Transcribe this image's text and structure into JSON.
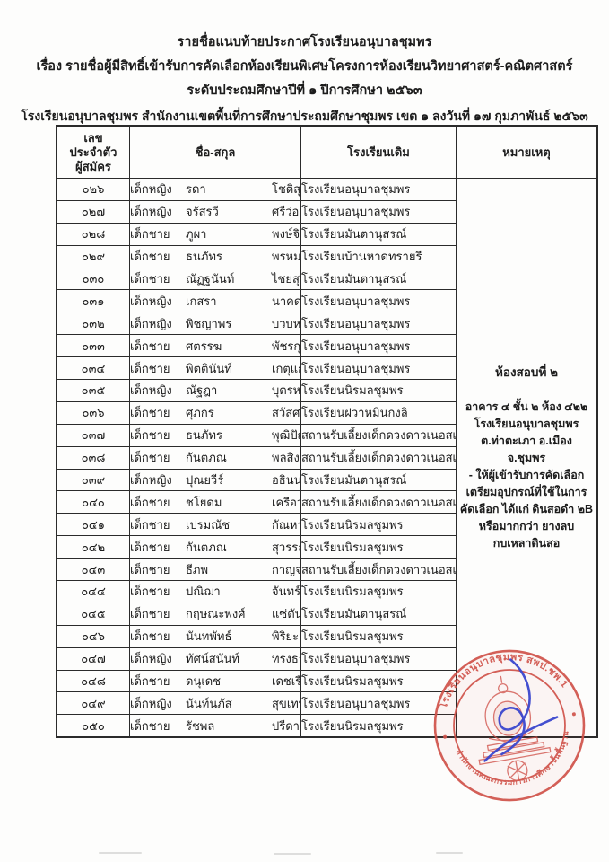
{
  "page": {
    "title_lines": [
      "รายชื่อแนบท้ายประกาศโรงเรียนอนุบาลชุมพร",
      "เรื่อง รายชื่อผู้มีสิทธิ์เข้ารับการคัดเลือกห้องเรียนพิเศษโครงการห้องเรียนวิทยาศาสตร์-คณิตศาสตร์",
      "ระดับประถมศึกษาปีที่ ๑ ปีการศึกษา ๒๕๖๓",
      "โรงเรียนอนุบาลชุมพร  สำนักงานเขตพื้นที่การศึกษาประถมศึกษาชุมพร เขต ๑ ลงวันที่ ๑๗ กุมภาพันธ์ ๒๕๖๓"
    ]
  },
  "table": {
    "headers": {
      "id_lines": [
        "เลข",
        "ประจำตัว",
        "ผู้สมัคร"
      ],
      "name": "ชื่อ-สกุล",
      "school": "โรงเรียนเดิม",
      "remark": "หมายเหตุ"
    },
    "rows": [
      {
        "id": "๐๒๖",
        "title": "เด็กหญิง",
        "first_name": "รดา",
        "last_name": "โชติสุวรรณ",
        "school": "โรงเรียนอนุบาลชุมพร"
      },
      {
        "id": "๐๒๗",
        "title": "เด็กหญิง",
        "first_name": "จรัสรวี",
        "last_name": "ศรีว่องไทย",
        "school": "โรงเรียนอนุบาลชุมพร"
      },
      {
        "id": "๐๒๘",
        "title": "เด็กชาย",
        "first_name": "ภูผา",
        "last_name": "พงษ์จิตภักดิ์",
        "school": "โรงเรียนมันตานุสรณ์"
      },
      {
        "id": "๐๒๙",
        "title": "เด็กชาย",
        "first_name": "ธนภัทร",
        "last_name": "พรหมพิมาน",
        "school": "โรงเรียนบ้านหาดทรายรี"
      },
      {
        "id": "๐๓๐",
        "title": "เด็กชาย",
        "first_name": "ณัฏฐนันท์",
        "last_name": "ไชยสุริยา",
        "school": "โรงเรียนมันตานุสรณ์"
      },
      {
        "id": "๐๓๑",
        "title": "เด็กหญิง",
        "first_name": "เกสรา",
        "last_name": "นาคดนตรี",
        "school": "โรงเรียนอนุบาลชุมพร"
      },
      {
        "id": "๐๓๒",
        "title": "เด็กหญิง",
        "first_name": "พิชญาพร",
        "last_name": "บวบหอม",
        "school": "โรงเรียนอนุบาลชุมพร"
      },
      {
        "id": "๐๓๓",
        "title": "เด็กชาย",
        "first_name": "ศตรรฆ",
        "last_name": "พัชรกุลเลิศ",
        "school": "โรงเรียนอนุบาลชุมพร"
      },
      {
        "id": "๐๓๔",
        "title": "เด็กชาย",
        "first_name": "พิตตินันท์",
        "last_name": "เกตุแก้ว",
        "school": "โรงเรียนอนุบาลชุมพร"
      },
      {
        "id": "๐๓๕",
        "title": "เด็กหญิง",
        "first_name": "ณัฐฎา",
        "last_name": "บุตรหงษ์",
        "school": "โรงเรียนนิรมลชุมพร"
      },
      {
        "id": "๐๓๖",
        "title": "เด็กชาย",
        "first_name": "ศุภกร",
        "last_name": "สวัสศรี",
        "school": "โรงเรียนฝวาหมินกงลิ"
      },
      {
        "id": "๐๓๗",
        "title": "เด็กชาย",
        "first_name": "ธนภัทร",
        "last_name": "พุฒิปัญญาวงศ์",
        "school": "สถานรับเลี้ยงเด็กดวงดาวเนอสเซอรี่"
      },
      {
        "id": "๐๓๘",
        "title": "เด็กชาย",
        "first_name": "กันตภณ",
        "last_name": "พลสิงห์",
        "school": "สถานรับเลี้ยงเด็กดวงดาวเนอสเซอรี่"
      },
      {
        "id": "๐๓๙",
        "title": "เด็กหญิง",
        "first_name": "ปุณยวีร์",
        "last_name": "อธินนท์นิธิพร",
        "school": "โรงเรียนมันตานุสรณ์"
      },
      {
        "id": "๐๔๐",
        "title": "เด็กชาย",
        "first_name": "ชโยดม",
        "last_name": "เครือวงษ์จันทร์",
        "school": "สถานรับเลี้ยงเด็กดวงดาวเนอสเซอรี่"
      },
      {
        "id": "๐๔๑",
        "title": "เด็กชาย",
        "first_name": "เปรมณัช",
        "last_name": "กัณหา",
        "school": "โรงเรียนนิรมลชุมพร"
      },
      {
        "id": "๐๔๒",
        "title": "เด็กชาย",
        "first_name": "กันตภณ",
        "last_name": "สุวรรณ",
        "school": "โรงเรียนนิรมลชุมพร"
      },
      {
        "id": "๐๔๓",
        "title": "เด็กชาย",
        "first_name": "ธีภพ",
        "last_name": "กาญจนชุมพล",
        "school": "สถานรับเลี้ยงเด็กดวงดาวเนอสเซอรี่"
      },
      {
        "id": "๐๔๔",
        "title": "เด็กชาย",
        "first_name": "ปณิฌา",
        "last_name": "จันทร์แจ้ง",
        "school": "โรงเรียนนิรมลชุมพร"
      },
      {
        "id": "๐๔๕",
        "title": "เด็กชาย",
        "first_name": "กฤษณะพงศ์",
        "last_name": "แซ่ตัน",
        "school": "โรงเรียนมันตานุสรณ์"
      },
      {
        "id": "๐๔๖",
        "title": "เด็กชาย",
        "first_name": "นันทพัทธ์",
        "last_name": "พิริยะสงวนพงศ์",
        "school": "โรงเรียนนิรมลชุมพร"
      },
      {
        "id": "๐๔๗",
        "title": "เด็กหญิง",
        "first_name": "ทัศน์สนันท์",
        "last_name": "ทรงธรรม",
        "school": "โรงเรียนอนุบาลชุมพร"
      },
      {
        "id": "๐๔๘",
        "title": "เด็กชาย",
        "first_name": "ดนุเดช",
        "last_name": "เดชเรือง",
        "school": "โรงเรียนนิรมลชุมพร"
      },
      {
        "id": "๐๔๙",
        "title": "เด็กหญิง",
        "first_name": "นันท์นภัส",
        "last_name": "สุขเทพ",
        "school": "โรงเรียนอนุบาลชุมพร"
      },
      {
        "id": "๐๕๐",
        "title": "เด็กชาย",
        "first_name": "รัชพล",
        "last_name": "ปรีดาศักดิ์",
        "school": "โรงเรียนนิรมลชุมพร"
      }
    ]
  },
  "remark": {
    "heading": "ห้องสอบที่ ๒",
    "lines": [
      "อาคาร ๔ ชั้น ๒ ห้อง ๔๒๒",
      "โรงเรียนอนุบาลชุมพร",
      "ต.ท่าตะเภา อ.เมือง",
      "จ.ชุมพร",
      "- ให้ผู้เข้ารับการคัดเลือก",
      "เตรียมอุปกรณ์ที่ใช้ในการ",
      "คัดเลือก ได้แก่ ดินสอดำ ๒B",
      "หรือมากกว่า ยางลบ",
      "กบเหลาดินสอ"
    ]
  },
  "stamp": {
    "top_text": "โรงเรียนอนุบาลชุมพร สพป.ชพ.1",
    "bottom_text": "สำนักงานคณะกรรมการการศึกษาขั้นพื้นฐาน",
    "stamp_color": "#d0524a",
    "signature_color": "#2936c9"
  }
}
